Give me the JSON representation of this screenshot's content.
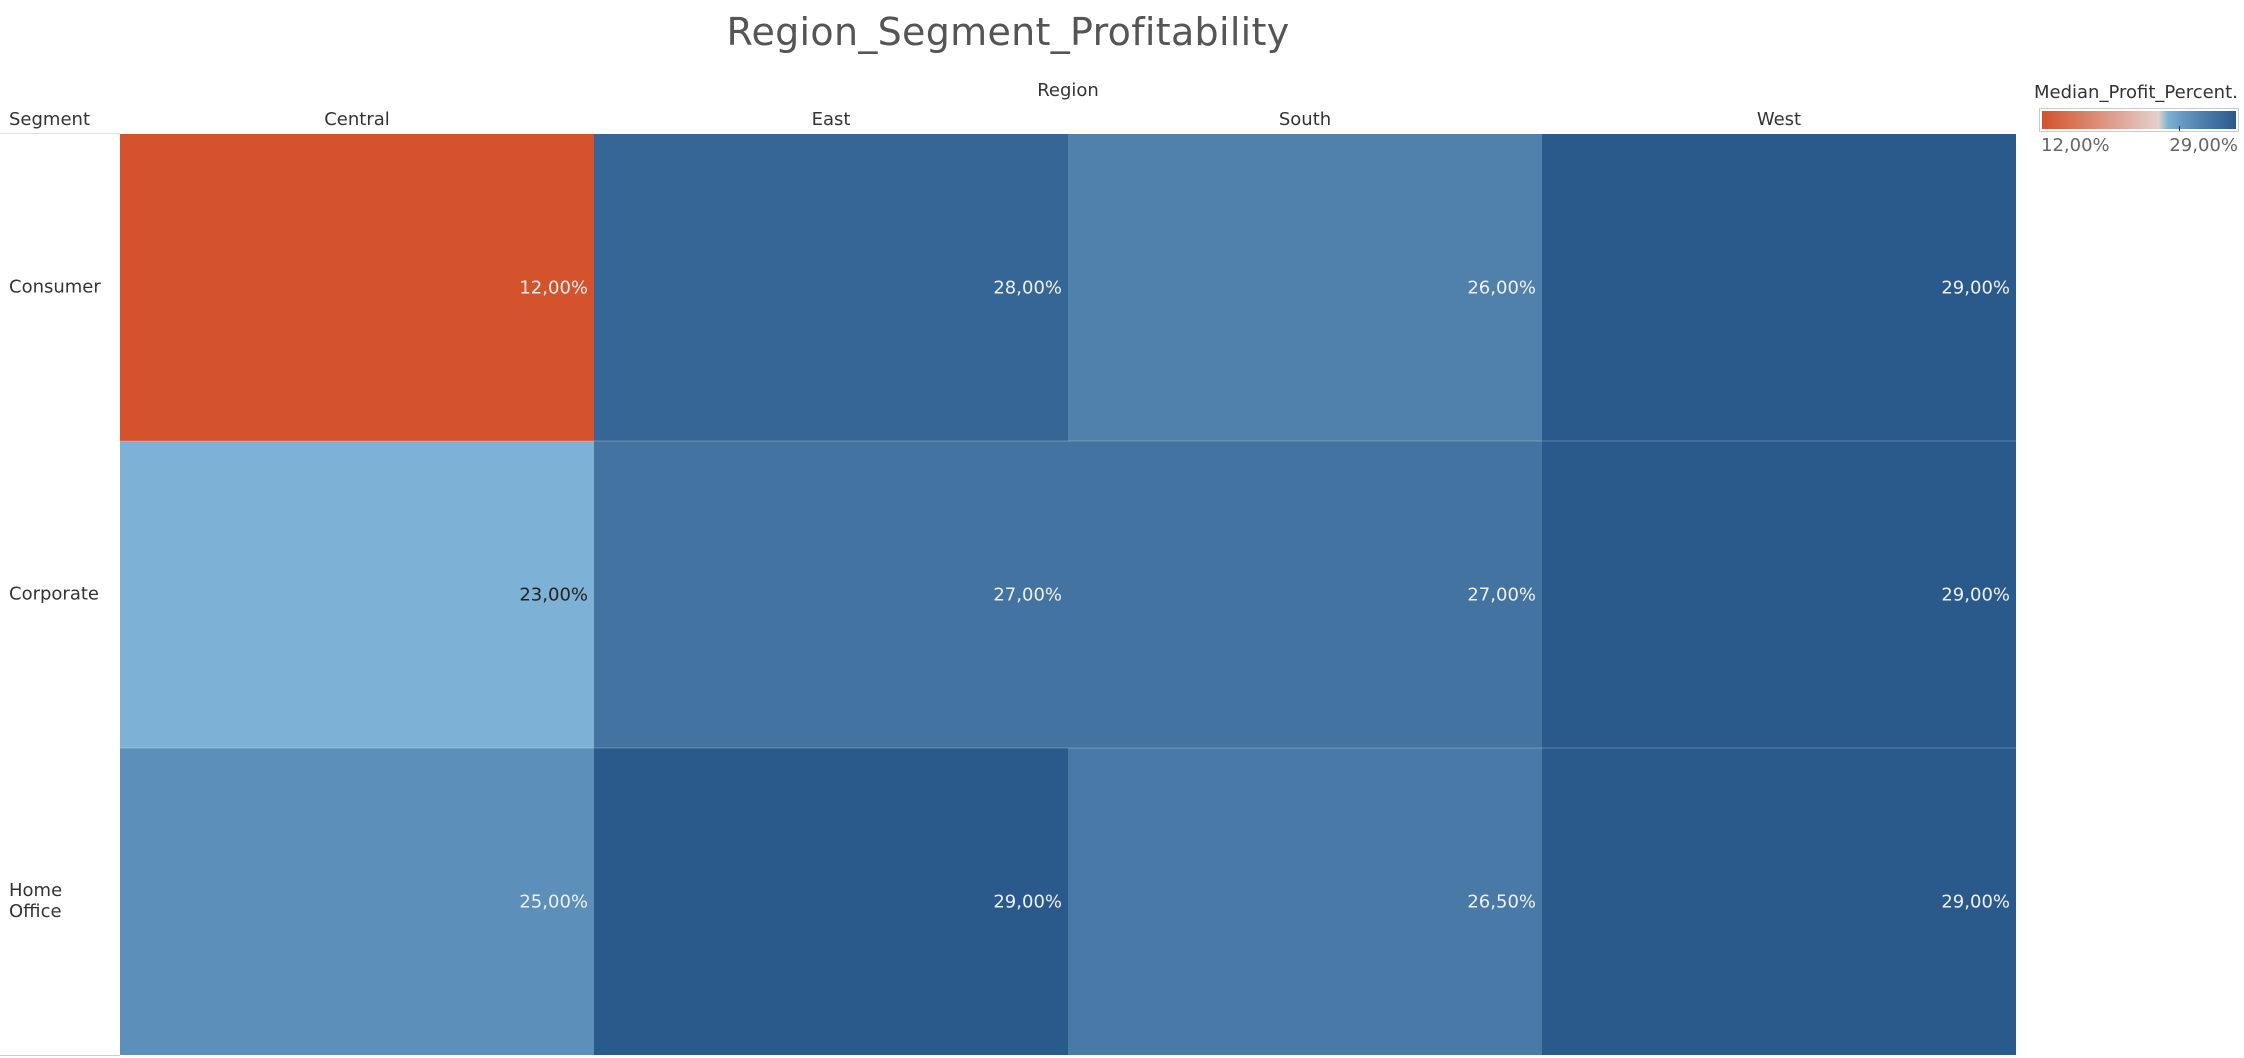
{
  "chart_data": {
    "type": "heatmap",
    "title": "Region_Segment_Profitability",
    "column_header": "Region",
    "row_header": "Segment",
    "columns": [
      "Central",
      "East",
      "South",
      "West"
    ],
    "rows": [
      "Consumer",
      "Corporate",
      "Home Office"
    ],
    "values": [
      [
        12.0,
        28.0,
        26.0,
        29.0
      ],
      [
        23.0,
        27.0,
        27.0,
        29.0
      ],
      [
        25.0,
        29.0,
        26.5,
        29.0
      ]
    ],
    "cell_labels": [
      [
        "12,00%",
        "28,00%",
        "26,00%",
        "29,00%"
      ],
      [
        "23,00%",
        "27,00%",
        "27,00%",
        "29,00%"
      ],
      [
        "25,00%",
        "29,00%",
        "26,50%",
        "29,00%"
      ]
    ],
    "color_scale": {
      "type": "diverging",
      "min": 12.0,
      "max": 29.0,
      "center": 24.0,
      "low_color": "#d4522c",
      "mid_color": "#e7e7e7",
      "light_blue_color": "#7db1d6",
      "high_color": "#2a5a8b"
    },
    "legend": {
      "title": "Median_Profit_Percent..",
      "min_label": "12,00%",
      "max_label": "29,00%",
      "placement": "top-right"
    }
  }
}
